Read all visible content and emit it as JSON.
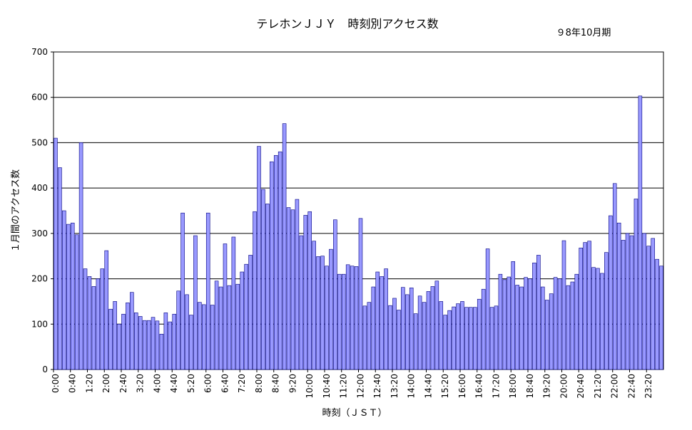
{
  "chart_data": {
    "type": "bar",
    "title": "テレホンＪＪＹ　時刻別アクセス数",
    "period": "９8年10月期",
    "xlabel": "時刻（ＪＳＴ）",
    "ylabel": "１月間のアクセス数",
    "ylim": [
      0,
      700
    ],
    "yticks": [
      0,
      100,
      200,
      300,
      400,
      500,
      600,
      700
    ],
    "ytick_labels": [
      "0",
      "100",
      "200",
      "300",
      "400",
      "500",
      "600",
      "700"
    ],
    "grid": true,
    "bar_color": "#9999ff",
    "bar_edge": "#000080",
    "interval_minutes": 10,
    "xtick_labels": [
      "0:00",
      "0:40",
      "1:20",
      "2:00",
      "2:40",
      "3:20",
      "4:00",
      "4:40",
      "5:20",
      "6:00",
      "6:40",
      "7:20",
      "8:00",
      "8:40",
      "9:20",
      "10:00",
      "10:40",
      "11:20",
      "12:00",
      "12:40",
      "13:20",
      "14:00",
      "14:40",
      "15:20",
      "16:00",
      "16:40",
      "17:20",
      "18:00",
      "18:40",
      "19:20",
      "20:00",
      "20:40",
      "21:20",
      "22:00",
      "22:40",
      "23:20"
    ],
    "values": [
      510,
      445,
      350,
      320,
      323,
      297,
      500,
      222,
      205,
      183,
      200,
      222,
      262,
      133,
      150,
      100,
      122,
      147,
      170,
      125,
      117,
      108,
      108,
      115,
      107,
      78,
      125,
      105,
      122,
      173,
      345,
      165,
      120,
      295,
      148,
      143,
      345,
      142,
      195,
      182,
      277,
      185,
      292,
      188,
      215,
      232,
      252,
      348,
      492,
      397,
      365,
      458,
      472,
      480,
      542,
      357,
      352,
      375,
      295,
      340,
      348,
      283,
      249,
      250,
      228,
      265,
      330,
      210,
      210,
      231,
      228,
      227,
      333,
      140,
      148,
      182,
      215,
      205,
      222,
      141,
      157,
      131,
      181,
      165,
      180,
      123,
      162,
      148,
      172,
      183,
      195,
      150,
      120,
      130,
      138,
      145,
      150,
      137,
      137,
      137,
      155,
      177,
      266,
      137,
      140,
      210,
      198,
      204,
      238,
      186,
      182,
      203,
      200,
      235,
      252,
      182,
      153,
      167,
      203,
      200,
      284,
      185,
      193,
      210,
      268,
      280,
      283,
      225,
      223,
      212,
      258,
      339,
      410,
      323,
      285,
      300,
      295,
      376,
      603,
      300,
      272,
      289,
      243,
      228
    ]
  }
}
